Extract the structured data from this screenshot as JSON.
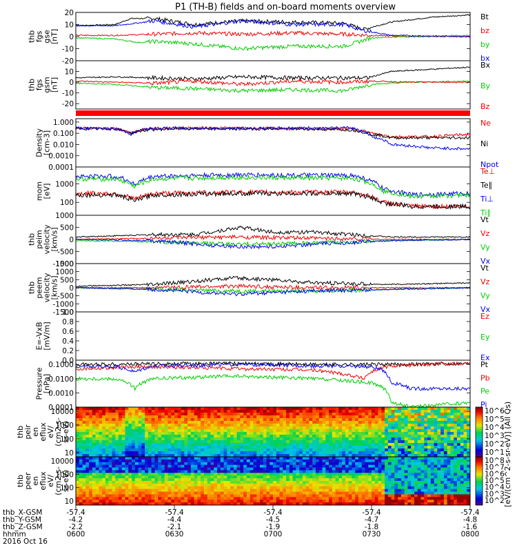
{
  "chart_data": {
    "type": "line",
    "title": "P1 (TH-B) fields and on-board moments overview",
    "date": "2016 Oct 16",
    "time_axis": {
      "row_labels": [
        "thb_X-GSM",
        "thb_Y-GSM",
        "thb_Z-GSM",
        "hhmm"
      ],
      "columns": [
        {
          "x": "-57.4",
          "y": "-4.2",
          "z": "-2.2",
          "hhmm": "0600"
        },
        {
          "x": "-57.4",
          "y": "-4.4",
          "z": "-2.1",
          "hhmm": "0630"
        },
        {
          "x": "-57.4",
          "y": "-4.5",
          "z": "-1.9",
          "hhmm": "0700"
        },
        {
          "x": "-57.4",
          "y": "-4.7",
          "z": "-1.8",
          "hhmm": "0730"
        },
        {
          "x": "-57.4",
          "y": "-4.8",
          "z": "-1.6",
          "hhmm": "0800"
        }
      ],
      "range": [
        "0600",
        "0800"
      ]
    },
    "panels": [
      {
        "ylabel": [
          "thb",
          "fgs",
          "gse",
          "[nT]"
        ],
        "scale": "linear",
        "ylim": [
          -20,
          20
        ],
        "ticks": [
          "20",
          "10",
          "0",
          "-10",
          "-20"
        ],
        "series": [
          {
            "name": "Bt",
            "color": "#000000",
            "x": [
              0,
              0.1,
              0.14,
              0.2,
              0.3,
              0.42,
              0.55,
              0.68,
              0.73,
              0.8,
              0.9,
              1.0
            ],
            "y": [
              9,
              10,
              15,
              15,
              10,
              13,
              12,
              11,
              6,
              12,
              16,
              18
            ]
          },
          {
            "name": "bz",
            "color": "#ee0000",
            "x": [
              0,
              0.1,
              0.2,
              0.3,
              0.42,
              0.55,
              0.68,
              0.75,
              0.85,
              1.0
            ],
            "y": [
              1,
              1,
              2,
              3,
              2,
              3,
              2,
              1,
              0,
              0
            ]
          },
          {
            "name": "by",
            "color": "#00cc00",
            "x": [
              0,
              0.1,
              0.16,
              0.2,
              0.3,
              0.42,
              0.55,
              0.68,
              0.75,
              0.85,
              1.0
            ],
            "y": [
              -1,
              -2,
              -5,
              -4,
              -6,
              -10,
              -8,
              -8,
              -1,
              0,
              1
            ]
          },
          {
            "name": "bx",
            "color": "#0000ee",
            "x": [
              0,
              0.1,
              0.2,
              0.3,
              0.42,
              0.55,
              0.68,
              0.73,
              0.8,
              1.0
            ],
            "y": [
              9,
              9,
              13,
              8,
              13,
              10,
              10,
              5,
              1,
              0
            ]
          }
        ]
      },
      {
        "ylabel": [
          "thb",
          "fgs",
          "gsm",
          "[nT]"
        ],
        "scale": "linear",
        "ylim": [
          -25,
          20
        ],
        "ticks": [
          "10",
          "0",
          "-10",
          "-20"
        ],
        "series": [
          {
            "name": "Bx",
            "color": "#000000",
            "x": [
              0,
              0.1,
              0.2,
              0.3,
              0.42,
              0.55,
              0.68,
              0.74,
              0.8,
              0.9,
              1.0
            ],
            "y": [
              4,
              5,
              4,
              3,
              5,
              4,
              4,
              4,
              10,
              12,
              14
            ]
          },
          {
            "name": "By",
            "color": "#00cc00",
            "x": [
              0,
              0.1,
              0.2,
              0.3,
              0.42,
              0.55,
              0.68,
              0.75,
              0.85,
              1.0
            ],
            "y": [
              -1,
              -2,
              -5,
              -6,
              -8,
              -7,
              -8,
              -2,
              0,
              1
            ]
          },
          {
            "name": "Bz",
            "color": "#ee0000",
            "x": [
              0,
              0.1,
              0.2,
              0.3,
              0.42,
              0.55,
              0.68,
              0.75,
              0.85,
              1.0
            ],
            "y": [
              1,
              0,
              -1,
              1,
              -2,
              1,
              0,
              1,
              0,
              0
            ]
          }
        ]
      },
      {
        "ylabel": [
          "Density",
          "[cm-3]"
        ],
        "scale": "log",
        "ylim": [
          0.0001,
          2
        ],
        "ticks": [
          "1.000",
          "0.100",
          "0.010",
          "0.0010",
          "0.0001"
        ],
        "series": [
          {
            "name": "Ne",
            "color": "#ee0000",
            "x": [
              0,
              0.1,
              0.14,
              0.18,
              0.25,
              0.4,
              0.55,
              0.7,
              0.75,
              0.8,
              0.9,
              1.0
            ],
            "y": [
              0.3,
              0.25,
              0.1,
              0.25,
              0.3,
              0.3,
              0.25,
              0.25,
              0.1,
              0.05,
              0.05,
              0.08
            ]
          },
          {
            "name": "Ni",
            "color": "#000000",
            "x": [
              0,
              0.1,
              0.14,
              0.18,
              0.25,
              0.4,
              0.55,
              0.7,
              0.75,
              0.8,
              0.9,
              1.0
            ],
            "y": [
              0.25,
              0.25,
              0.1,
              0.2,
              0.25,
              0.25,
              0.25,
              0.2,
              0.08,
              0.04,
              0.04,
              0.04
            ]
          },
          {
            "name": "Npot",
            "color": "#0000ee",
            "x": [
              0,
              0.1,
              0.14,
              0.18,
              0.25,
              0.4,
              0.55,
              0.7,
              0.75,
              0.8,
              0.9,
              1.0
            ],
            "y": [
              0.3,
              0.25,
              0.08,
              0.25,
              0.3,
              0.25,
              0.3,
              0.3,
              0.05,
              0.01,
              0.005,
              0.004
            ]
          }
        ]
      },
      {
        "ylabel": [
          "mom",
          "[eV]"
        ],
        "scale": "log",
        "ylim": [
          20,
          8000
        ],
        "ticks": [
          "1000",
          "100"
        ],
        "series": [
          {
            "name": "Te⊥",
            "color": "#ee0000",
            "x": [
              0,
              0.1,
              0.15,
              0.2,
              0.4,
              0.6,
              0.7,
              0.78,
              0.85,
              1.0
            ],
            "y": [
              300,
              300,
              150,
              300,
              350,
              350,
              350,
              100,
              60,
              60
            ]
          },
          {
            "name": "Te∥",
            "color": "#000000",
            "x": [
              0,
              0.1,
              0.15,
              0.2,
              0.4,
              0.6,
              0.7,
              0.78,
              0.85,
              1.0
            ],
            "y": [
              250,
              250,
              120,
              250,
              300,
              300,
              300,
              90,
              60,
              60
            ]
          },
          {
            "name": "Ti⊥",
            "color": "#0000ee",
            "x": [
              0,
              0.1,
              0.15,
              0.2,
              0.4,
              0.6,
              0.7,
              0.78,
              0.85,
              1.0
            ],
            "y": [
              2500,
              2500,
              900,
              2500,
              3000,
              2800,
              2800,
              500,
              250,
              300
            ]
          },
          {
            "name": "Ti∥",
            "color": "#00cc00",
            "x": [
              0,
              0.1,
              0.15,
              0.2,
              0.4,
              0.6,
              0.7,
              0.78,
              0.85,
              1.0
            ],
            "y": [
              1800,
              1800,
              700,
              1800,
              2200,
              2000,
              2000,
              400,
              200,
              250
            ]
          }
        ]
      },
      {
        "ylabel": [
          "thb",
          "peim",
          "velocity",
          "[km/s]"
        ],
        "scale": "linear",
        "ylim": [
          -1000,
          1000
        ],
        "ticks": [
          "1000",
          "500",
          "0",
          "-500",
          "-1000"
        ],
        "series": [
          {
            "name": "Vt",
            "color": "#000000",
            "x": [
              0,
              0.1,
              0.2,
              0.3,
              0.42,
              0.5,
              0.6,
              0.7,
              0.8,
              1.0
            ],
            "y": [
              100,
              150,
              200,
              200,
              500,
              300,
              300,
              200,
              100,
              100
            ]
          },
          {
            "name": "Vz",
            "color": "#ee0000",
            "x": [
              0,
              0.2,
              0.4,
              0.6,
              0.8,
              1.0
            ],
            "y": [
              0,
              50,
              100,
              50,
              0,
              0
            ]
          },
          {
            "name": "Vy",
            "color": "#00cc00",
            "x": [
              0,
              0.2,
              0.4,
              0.6,
              0.8,
              1.0
            ],
            "y": [
              -50,
              -100,
              -200,
              -150,
              -50,
              0
            ]
          },
          {
            "name": "Vx",
            "color": "#0000ee",
            "x": [
              0,
              0.2,
              0.35,
              0.42,
              0.5,
              0.6,
              0.8,
              1.0
            ],
            "y": [
              0,
              -50,
              -250,
              -300,
              -300,
              -200,
              -50,
              0
            ]
          }
        ]
      },
      {
        "ylabel": [
          "thb",
          "peem",
          "velocity",
          "[km/s]"
        ],
        "scale": "linear",
        "ylim": [
          -1500,
          1500
        ],
        "ticks": [
          "1500",
          "1000",
          "500",
          "0",
          "-500",
          "-1000",
          "-1500"
        ],
        "series": [
          {
            "name": "Vt",
            "color": "#000000",
            "x": [
              0,
              0.2,
              0.3,
              0.4,
              0.5,
              0.6,
              0.8,
              1.0
            ],
            "y": [
              100,
              200,
              400,
              600,
              500,
              300,
              200,
              300
            ]
          },
          {
            "name": "Vz",
            "color": "#ee0000",
            "x": [
              0,
              0.2,
              0.4,
              0.6,
              0.8,
              1.0
            ],
            "y": [
              0,
              0,
              100,
              0,
              0,
              0
            ]
          },
          {
            "name": "Vy",
            "color": "#00cc00",
            "x": [
              0,
              0.2,
              0.4,
              0.6,
              0.8,
              1.0
            ],
            "y": [
              0,
              -100,
              -200,
              -200,
              -100,
              0
            ]
          },
          {
            "name": "Vx",
            "color": "#0000ee",
            "x": [
              0,
              0.2,
              0.4,
              0.5,
              0.6,
              0.8,
              1.0
            ],
            "y": [
              0,
              -100,
              -400,
              -300,
              -200,
              -100,
              0
            ]
          }
        ]
      },
      {
        "ylabel": [
          "E=-VxB",
          "[mV/m]"
        ],
        "scale": "linear",
        "ylim": [
          0,
          1
        ],
        "ticks": [
          "1.0",
          "0.8",
          "0.6",
          "0.4",
          "0.2",
          "0.0"
        ],
        "series": [
          {
            "name": "Ez",
            "color": "#ee0000",
            "x": [],
            "y": []
          },
          {
            "name": "Ey",
            "color": "#00cc00",
            "x": [],
            "y": []
          },
          {
            "name": "Ex",
            "color": "#0000ee",
            "x": [],
            "y": []
          }
        ]
      },
      {
        "ylabel": [
          "Pressure",
          "[nPa]"
        ],
        "scale": "log",
        "ylim": [
          0.0001,
          0.2
        ],
        "ticks": [
          "0.1000",
          "0.0100",
          "0.0010",
          "0.0001"
        ],
        "series": [
          {
            "name": "Pt",
            "color": "#000000",
            "x": [
              0,
              0.2,
              0.4,
              0.6,
              0.8,
              1.0
            ],
            "y": [
              0.1,
              0.11,
              0.12,
              0.1,
              0.1,
              0.12
            ]
          },
          {
            "name": "Pb",
            "color": "#ee0000",
            "x": [
              0,
              0.1,
              0.2,
              0.4,
              0.6,
              0.73,
              0.8,
              1.0
            ],
            "y": [
              0.05,
              0.06,
              0.07,
              0.05,
              0.04,
              0.01,
              0.08,
              0.12
            ]
          },
          {
            "name": "Pe",
            "color": "#00cc00",
            "x": [
              0,
              0.1,
              0.15,
              0.2,
              0.4,
              0.6,
              0.75,
              0.8,
              0.85,
              1.0
            ],
            "y": [
              0.01,
              0.01,
              0.002,
              0.01,
              0.015,
              0.01,
              0.005,
              0.0002,
              0.0001,
              0.0002
            ]
          },
          {
            "name": "Pi",
            "color": "#0000ee",
            "x": [
              0,
              0.1,
              0.15,
              0.2,
              0.4,
              0.6,
              0.75,
              0.8,
              0.85,
              1.0
            ],
            "y": [
              0.07,
              0.07,
              0.03,
              0.08,
              0.1,
              0.08,
              0.07,
              0.005,
              0.002,
              0.002
            ]
          }
        ]
      },
      {
        "type": "heatmap",
        "ylabel": [
          "thb",
          "peir",
          "en",
          "eflux",
          "eV/",
          "(cm2-s-",
          "sr-eV)"
        ],
        "scale": "log",
        "ylim": [
          5,
          20000
        ],
        "ticks": [
          "10000",
          "1000",
          "100",
          "10"
        ],
        "colorbar_ticks": [
          "10^6",
          "10^5",
          "10^4",
          "10^3",
          "10^2",
          "10^1"
        ]
      },
      {
        "type": "heatmap",
        "ylabel": [
          "thb",
          "peer",
          "en",
          "eflux",
          "eV/",
          "(cm2-s-",
          "sr-eV)"
        ],
        "scale": "log",
        "ylim": [
          5,
          20000
        ],
        "ticks": [
          "10000",
          "1000",
          "100",
          "10"
        ],
        "colorbar_ticks": [
          "10^8",
          "10^7",
          "10^6",
          "10^5",
          "10^4",
          "10^3",
          "10^2"
        ]
      }
    ],
    "colorbar_title": "[eV/(cm^2-s-sr-eV)] (All Qs)"
  }
}
